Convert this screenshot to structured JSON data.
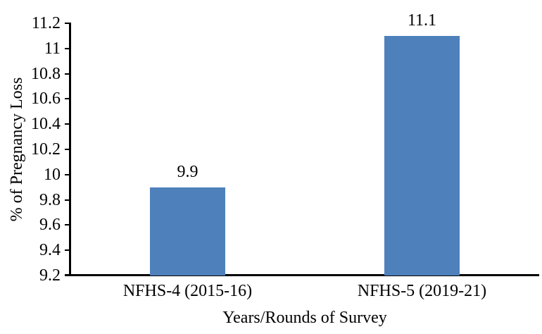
{
  "chart_data": {
    "type": "bar",
    "title": "",
    "categories": [
      "NFHS-4 (2015-16)",
      "NFHS-5 (2019-21)"
    ],
    "values": [
      9.9,
      11.1
    ],
    "data_labels": [
      "9.9",
      "11.1"
    ],
    "series": [
      {
        "name": "% of Pregnancy Loss",
        "values": [
          9.9,
          11.1
        ]
      }
    ],
    "xlabel": "Years/Rounds of Survey",
    "ylabel": "% of Pregnancy Loss",
    "ylim": [
      9.2,
      11.2
    ],
    "ytick_step": 0.2,
    "yticks": [
      "9.2",
      "9.4",
      "9.6",
      "9.8",
      "10",
      "10.2",
      "10.4",
      "10.6",
      "10.8",
      "11",
      "11.2"
    ],
    "grid": false,
    "legend": "none",
    "colors": {
      "bar": "#4E80BC",
      "axis": "#000000",
      "text": "#000000",
      "background": "#ffffff"
    }
  }
}
